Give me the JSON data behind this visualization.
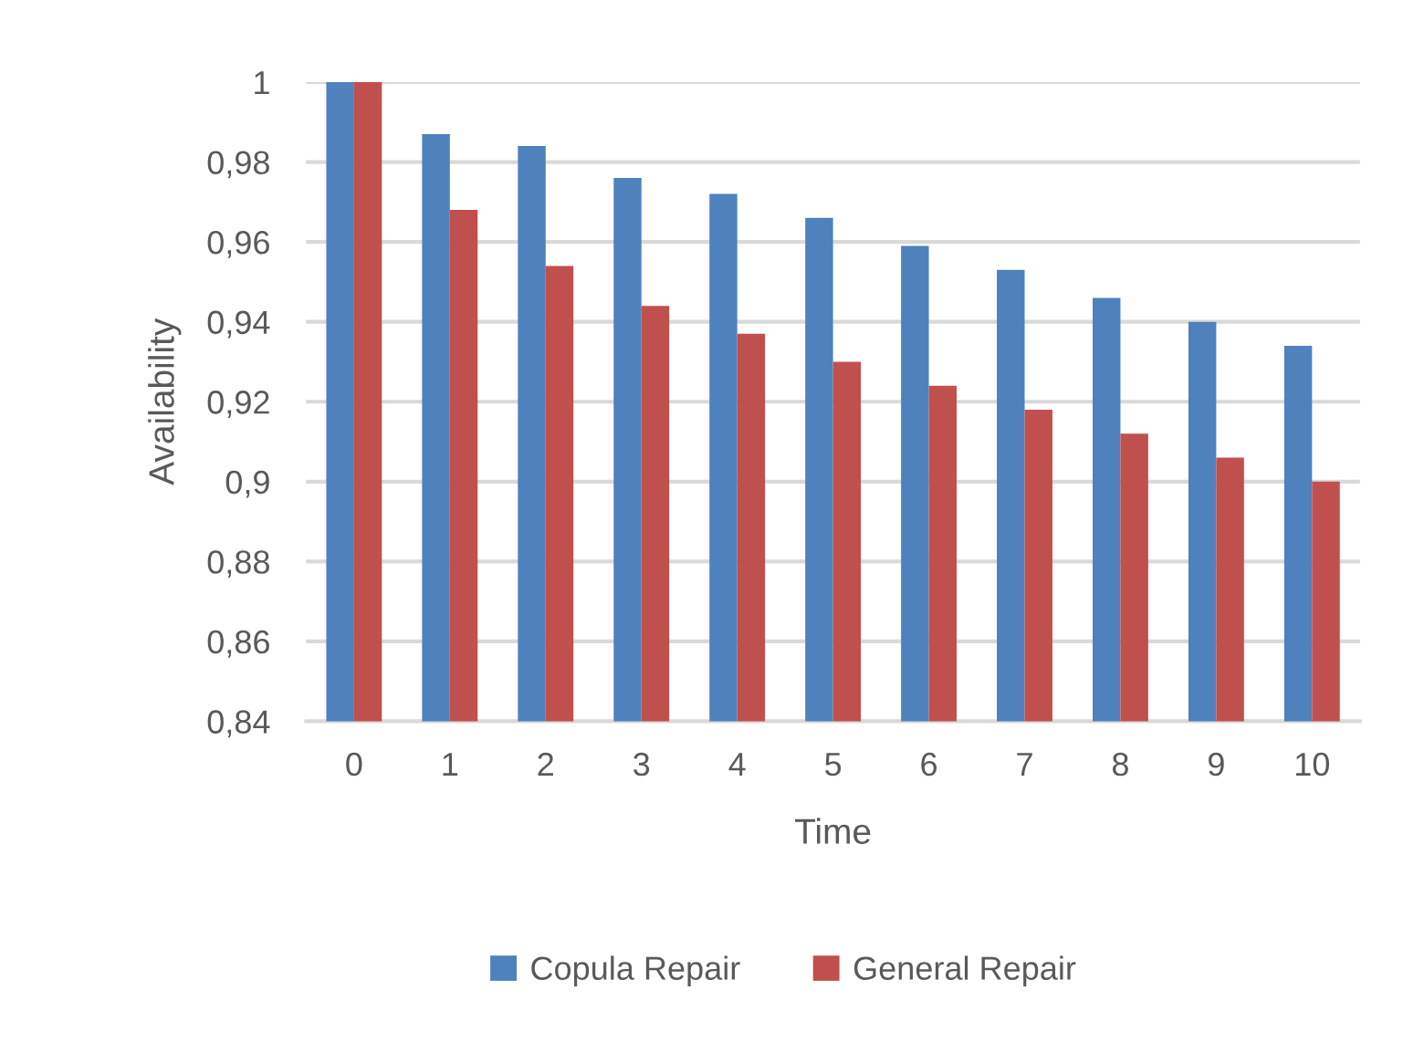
{
  "chart_data": {
    "type": "bar",
    "xlabel": "Time",
    "ylabel": "Availability",
    "categories": [
      "0",
      "1",
      "2",
      "3",
      "4",
      "5",
      "6",
      "7",
      "8",
      "9",
      "10"
    ],
    "series": [
      {
        "name": "Copula Repair",
        "color": "#4f81bd",
        "values": [
          1.0,
          0.987,
          0.984,
          0.976,
          0.972,
          0.966,
          0.959,
          0.953,
          0.946,
          0.94,
          0.934
        ]
      },
      {
        "name": "General Repair",
        "color": "#c0504d",
        "values": [
          1.0,
          0.968,
          0.954,
          0.944,
          0.937,
          0.93,
          0.924,
          0.918,
          0.912,
          0.906,
          0.9
        ]
      }
    ],
    "ylim": [
      0.84,
      1
    ],
    "yticks": [
      {
        "value": 0.84,
        "label": "0,84"
      },
      {
        "value": 0.86,
        "label": "0,86"
      },
      {
        "value": 0.88,
        "label": "0,88"
      },
      {
        "value": 0.9,
        "label": "0,9"
      },
      {
        "value": 0.92,
        "label": "0,92"
      },
      {
        "value": 0.94,
        "label": "0,94"
      },
      {
        "value": 0.96,
        "label": "0,96"
      },
      {
        "value": 0.98,
        "label": "0,98"
      },
      1
    ],
    "grid": "y",
    "legend": "bottom"
  }
}
